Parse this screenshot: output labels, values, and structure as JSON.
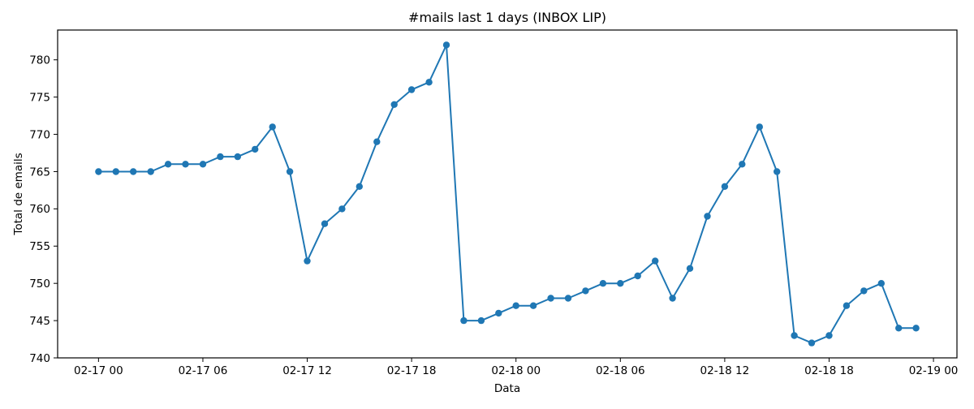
{
  "chart_data": {
    "type": "line",
    "title": "#mails last 1 days (INBOX LIP)",
    "xlabel": "Data",
    "ylabel": "Total de emails",
    "grid": false,
    "legend": null,
    "background_color": "#ffffff",
    "axis_color": "#000000",
    "text_color": "#000000",
    "xlim_hours": [
      -2.35,
      49.35
    ],
    "ylim": [
      740,
      784
    ],
    "x_ticks": [
      {
        "hour": 0,
        "label": "02-17 00"
      },
      {
        "hour": 6,
        "label": "02-17 06"
      },
      {
        "hour": 12,
        "label": "02-17 12"
      },
      {
        "hour": 18,
        "label": "02-17 18"
      },
      {
        "hour": 24,
        "label": "02-18 00"
      },
      {
        "hour": 30,
        "label": "02-18 06"
      },
      {
        "hour": 36,
        "label": "02-18 12"
      },
      {
        "hour": 42,
        "label": "02-18 18"
      },
      {
        "hour": 48,
        "label": "02-19 00"
      }
    ],
    "y_ticks": [
      740,
      745,
      750,
      755,
      760,
      765,
      770,
      775,
      780
    ],
    "series": [
      {
        "name": "mails",
        "color": "#1f77b4",
        "marker": "circle",
        "marker_radius": 4.2,
        "line_width": 2,
        "x_start_label": "02-17 00",
        "x_interval_hours": 1,
        "x_hours": [
          0,
          1,
          2,
          3,
          4,
          5,
          6,
          7,
          8,
          9,
          10,
          11,
          12,
          13,
          14,
          15,
          16,
          17,
          18,
          19,
          20,
          21,
          22,
          23,
          24,
          25,
          26,
          27,
          28,
          29,
          30,
          31,
          32,
          33,
          34,
          35,
          36,
          37,
          38,
          39,
          40,
          41,
          42,
          43,
          44,
          45,
          46,
          47
        ],
        "values": [
          765,
          765,
          765,
          765,
          766,
          766,
          766,
          767,
          767,
          768,
          771,
          765,
          753,
          758,
          760,
          763,
          769,
          774,
          776,
          777,
          782,
          745,
          745,
          746,
          747,
          747,
          748,
          748,
          749,
          750,
          750,
          751,
          753,
          748,
          752,
          759,
          763,
          766,
          771,
          765,
          743,
          742,
          743,
          747,
          749,
          750,
          744,
          744
        ]
      }
    ]
  }
}
